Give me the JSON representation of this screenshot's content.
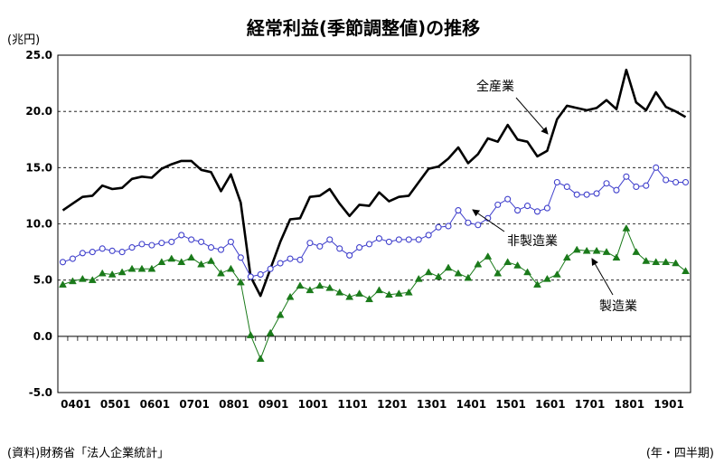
{
  "chart_data": {
    "type": "line",
    "title": "経常利益(季節調整値)の推移",
    "ylabel": "(兆円)",
    "xlabel": "(年・四半期)",
    "source": "(資料)財務省「法人企業統計」",
    "ylim": [
      -5,
      25
    ],
    "yticks": [
      "25.0",
      "20.0",
      "15.0",
      "10.0",
      "5.0",
      "0.0",
      "-5.0"
    ],
    "ytick_values": [
      25,
      20,
      15,
      10,
      5,
      0,
      -5
    ],
    "x_start": "2004Q1",
    "x_end": "2019Q4",
    "xticks": [
      "0401",
      "0501",
      "0601",
      "0701",
      "0801",
      "0901",
      "1001",
      "1101",
      "1201",
      "1301",
      "1401",
      "1501",
      "1601",
      "1701",
      "1801",
      "1901"
    ],
    "grid": "horizontal-dashed",
    "series": [
      {
        "name": "全産業",
        "color": "#000000",
        "marker": "none",
        "values": [
          11.2,
          11.8,
          12.4,
          12.5,
          13.4,
          13.1,
          13.2,
          14.0,
          14.2,
          14.1,
          14.9,
          15.3,
          15.6,
          15.6,
          14.8,
          14.6,
          12.9,
          14.4,
          11.9,
          5.3,
          3.6,
          6.0,
          8.4,
          10.4,
          10.5,
          12.4,
          12.5,
          13.1,
          11.8,
          10.7,
          11.7,
          11.6,
          12.8,
          12.0,
          12.4,
          12.5,
          13.7,
          14.9,
          15.1,
          15.8,
          16.8,
          15.4,
          16.2,
          17.6,
          17.3,
          18.8,
          17.5,
          17.3,
          16.0,
          16.5,
          19.3,
          20.5,
          20.3,
          20.1,
          20.3,
          21.0,
          20.2,
          23.7,
          20.8,
          20.1,
          21.7,
          20.4,
          20.0,
          19.5
        ]
      },
      {
        "name": "非製造業",
        "color": "#4040cc",
        "marker": "circle-open",
        "values": [
          6.6,
          6.9,
          7.4,
          7.5,
          7.8,
          7.6,
          7.5,
          7.9,
          8.2,
          8.1,
          8.3,
          8.4,
          9.0,
          8.6,
          8.4,
          7.9,
          7.7,
          8.4,
          7.0,
          5.3,
          5.5,
          6.0,
          6.5,
          6.9,
          6.8,
          8.3,
          8.0,
          8.6,
          7.8,
          7.2,
          7.9,
          8.2,
          8.7,
          8.4,
          8.6,
          8.6,
          8.6,
          9.0,
          9.7,
          9.8,
          11.2,
          10.1,
          9.9,
          10.5,
          11.7,
          12.2,
          11.2,
          11.6,
          11.1,
          11.4,
          13.7,
          13.3,
          12.6,
          12.6,
          12.7,
          13.6,
          13.0,
          14.2,
          13.3,
          13.4,
          15.0,
          13.9,
          13.7,
          13.7
        ]
      },
      {
        "name": "製造業",
        "color": "#1a7a1a",
        "marker": "triangle-filled",
        "values": [
          4.6,
          4.9,
          5.1,
          5.0,
          5.6,
          5.5,
          5.7,
          6.0,
          6.0,
          6.0,
          6.6,
          6.9,
          6.6,
          7.0,
          6.4,
          6.7,
          5.6,
          6.0,
          4.8,
          0.1,
          -2.0,
          0.3,
          1.9,
          3.5,
          4.5,
          4.1,
          4.5,
          4.3,
          3.9,
          3.5,
          3.8,
          3.3,
          4.1,
          3.7,
          3.8,
          3.9,
          5.1,
          5.7,
          5.3,
          6.1,
          5.6,
          5.2,
          6.4,
          7.1,
          5.6,
          6.6,
          6.3,
          5.7,
          4.6,
          5.1,
          5.5,
          7.0,
          7.7,
          7.6,
          7.6,
          7.5,
          7.0,
          9.6,
          7.5,
          6.7,
          6.6,
          6.6,
          6.5,
          5.8
        ]
      }
    ],
    "annotations": [
      {
        "series": "全産業",
        "text": "全産業"
      },
      {
        "series": "非製造業",
        "text": "非製造業"
      },
      {
        "series": "製造業",
        "text": "製造業"
      }
    ]
  }
}
